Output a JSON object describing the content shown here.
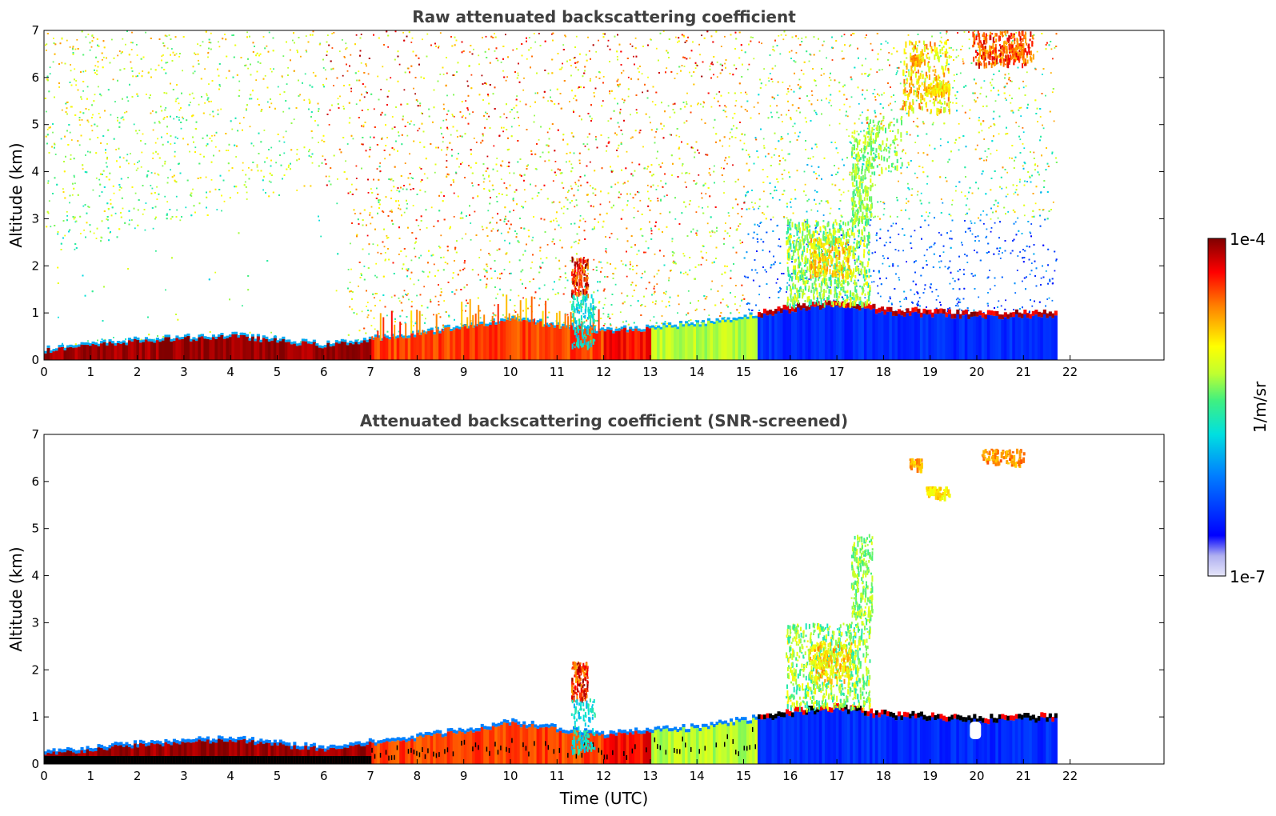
{
  "chart_data": [
    {
      "type": "heatmap",
      "title": "Raw attenuated backscattering coefficient",
      "xlabel": "",
      "ylabel": "Altitude (km)",
      "xlim": [
        0,
        24
      ],
      "ylim": [
        0,
        7
      ],
      "x_ticks": [
        "0",
        "1",
        "2",
        "3",
        "4",
        "5",
        "6",
        "7",
        "8",
        "9",
        "10",
        "11",
        "12",
        "13",
        "14",
        "15",
        "16",
        "17",
        "18",
        "19",
        "20",
        "21",
        "22"
      ],
      "y_ticks": [
        "0",
        "1",
        "2",
        "3",
        "4",
        "5",
        "6",
        "7"
      ],
      "data_end_time": 21.7,
      "boundary_layer_top_km": [
        {
          "x": 0,
          "y": 0.2
        },
        {
          "x": 2,
          "y": 0.4
        },
        {
          "x": 4,
          "y": 0.5
        },
        {
          "x": 6,
          "y": 0.3
        },
        {
          "x": 8,
          "y": 0.55
        },
        {
          "x": 10,
          "y": 0.85
        },
        {
          "x": 12,
          "y": 0.6
        },
        {
          "x": 14,
          "y": 0.75
        },
        {
          "x": 16,
          "y": 1.05
        },
        {
          "x": 17,
          "y": 1.15
        },
        {
          "x": 18,
          "y": 1.0
        },
        {
          "x": 19,
          "y": 0.95
        },
        {
          "x": 20,
          "y": 0.9
        },
        {
          "x": 21.7,
          "y": 0.95
        }
      ],
      "features": [
        {
          "name": "cloud near 11.5 h",
          "x": [
            11.3,
            11.6
          ],
          "y": [
            1.4,
            2.2
          ]
        },
        {
          "name": "convective plumes",
          "x": [
            15.9,
            17.7
          ],
          "y": [
            1.2,
            3.0
          ]
        },
        {
          "name": "rising layer",
          "x": [
            17.3,
            18.4
          ],
          "y": [
            3.0,
            5.2
          ]
        },
        {
          "name": "upper cloud patches",
          "x": [
            18.4,
            21.2
          ],
          "y": [
            5.3,
            7.0
          ]
        }
      ]
    },
    {
      "type": "heatmap",
      "title": "Attenuated backscattering coefficient (SNR-screened)",
      "xlabel": "Time (UTC)",
      "ylabel": "Altitude (km)",
      "xlim": [
        0,
        24
      ],
      "ylim": [
        0,
        7
      ],
      "x_ticks": [
        "0",
        "1",
        "2",
        "3",
        "4",
        "5",
        "6",
        "7",
        "8",
        "9",
        "10",
        "11",
        "12",
        "13",
        "14",
        "15",
        "16",
        "17",
        "18",
        "19",
        "20",
        "21",
        "22"
      ],
      "y_ticks": [
        "0",
        "1",
        "2",
        "3",
        "4",
        "5",
        "6",
        "7"
      ],
      "data_end_time": 21.7,
      "screened": true
    }
  ],
  "colorbar": {
    "label": "1/m/sr",
    "max_label": "1e-4",
    "min_label": "1e-7",
    "scale": "log",
    "range": [
      1e-07,
      0.0001
    ],
    "colors": [
      "#e6e6fa",
      "#0000ff",
      "#00bfff",
      "#40e0d0",
      "#adff2f",
      "#ffff00",
      "#ffa500",
      "#ff0000",
      "#8b0000"
    ]
  }
}
